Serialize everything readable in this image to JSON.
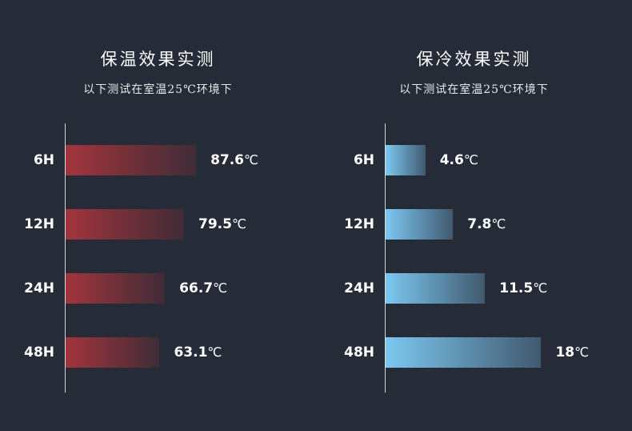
{
  "chart_data": [
    {
      "type": "bar",
      "orientation": "horizontal",
      "title": "保温效果实测",
      "subtitle": "以下测试在室温25℃环境下",
      "categories": [
        "6H",
        "12H",
        "24H",
        "48H"
      ],
      "values": [
        87.6,
        79.5,
        66.7,
        63.1
      ],
      "value_labels": [
        "87.6",
        "79.5",
        "66.7",
        "63.1"
      ],
      "unit": "℃",
      "xlim": [
        0,
        130
      ],
      "grid": false,
      "colors": {
        "start": "#a3343c",
        "end": "#3f2c37"
      }
    },
    {
      "type": "bar",
      "orientation": "horizontal",
      "title": "保冷效果实测",
      "subtitle": "以下测试在室温25℃环境下",
      "categories": [
        "6H",
        "12H",
        "24H",
        "48H"
      ],
      "values": [
        4.6,
        7.8,
        11.5,
        18
      ],
      "value_labels": [
        "4.6",
        "7.8",
        "11.5",
        "18"
      ],
      "unit": "℃",
      "xlim": [
        0,
        22.4
      ],
      "grid": false,
      "colors": {
        "start": "#7cc8f0",
        "end": "#41596f"
      }
    }
  ]
}
